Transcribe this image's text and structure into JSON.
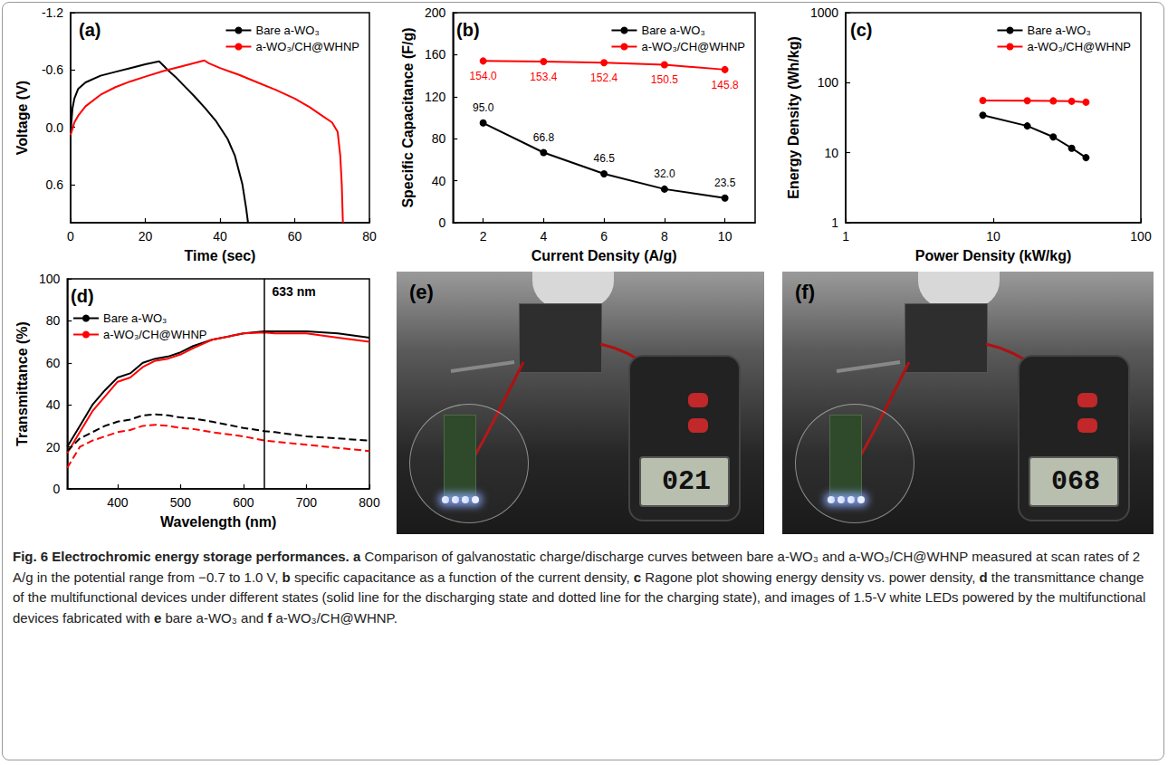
{
  "chart_data": [
    {
      "type": "line",
      "title": "(a)",
      "xlabel": "Time (sec)",
      "ylabel": "Voltage (V)",
      "xlim": [
        0,
        80
      ],
      "xticks": [
        0,
        20,
        40,
        60,
        80
      ],
      "ylim": [
        1.0,
        -1.2
      ],
      "yticks": [
        -1.2,
        -0.6,
        {
          "value": 0,
          "label": "0.0"
        },
        0.6
      ],
      "grid": false,
      "legend": "upper right",
      "series": [
        {
          "name": "Bare a-WO₃",
          "color": "#000000",
          "line_style": "solid",
          "x": [
            0,
            0.5,
            1,
            2,
            4,
            8,
            12,
            16,
            20,
            23.7,
            24.5,
            26,
            28,
            30,
            33,
            36,
            39,
            42,
            44,
            46,
            47,
            47.5
          ],
          "values": [
            0.05,
            -0.2,
            -0.3,
            -0.4,
            -0.47,
            -0.54,
            -0.58,
            -0.62,
            -0.66,
            -0.69,
            -0.66,
            -0.6,
            -0.53,
            -0.45,
            -0.33,
            -0.2,
            -0.06,
            0.12,
            0.3,
            0.6,
            0.85,
            1.0
          ]
        },
        {
          "name": "a-WO₃/CH@WHNP",
          "color": "#ff0000",
          "line_style": "solid",
          "x": [
            0,
            1,
            2,
            4,
            8,
            12,
            16,
            20,
            25,
            30,
            35.8,
            37,
            40,
            45,
            50,
            55,
            60,
            64,
            67,
            70,
            71.5,
            72.2,
            72.6,
            72.9
          ],
          "values": [
            0.08,
            -0.05,
            -0.12,
            -0.22,
            -0.34,
            -0.42,
            -0.48,
            -0.53,
            -0.59,
            -0.64,
            -0.7,
            -0.67,
            -0.62,
            -0.55,
            -0.47,
            -0.39,
            -0.3,
            -0.21,
            -0.13,
            -0.05,
            0.05,
            0.3,
            0.6,
            1.0
          ]
        }
      ]
    },
    {
      "type": "line",
      "title": "(b)",
      "xlabel": "Current Density (A/g)",
      "ylabel": "Specific Capacitance (F/g)",
      "x": [
        2,
        4,
        6,
        8,
        10
      ],
      "xlim": [
        1,
        11
      ],
      "xticks": [
        2,
        4,
        6,
        8,
        10
      ],
      "ylim": [
        0,
        200
      ],
      "yticks": [
        0,
        40,
        80,
        120,
        160,
        200
      ],
      "grid": false,
      "legend": "upper right",
      "data_labels": true,
      "marker": "circle",
      "series": [
        {
          "name": "Bare a-WO₃",
          "color": "#000000",
          "line_style": "solid",
          "values": [
            95.0,
            66.8,
            46.5,
            32.0,
            23.5
          ],
          "value_labels": [
            "95.0",
            "66.8",
            "46.5",
            "32.0",
            "23.5"
          ]
        },
        {
          "name": "a-WO₃/CH@WHNP",
          "color": "#ff0000",
          "line_style": "solid",
          "values": [
            154.0,
            153.4,
            152.4,
            150.5,
            145.8
          ],
          "value_labels": [
            "154.0",
            "153.4",
            "152.4",
            "150.5",
            "145.8"
          ]
        }
      ]
    },
    {
      "type": "line",
      "title": "(c)",
      "xlabel": "Power Density (kW/kg)",
      "ylabel": "Energy Density (Wh/kg)",
      "log": true,
      "xlim": [
        1,
        100
      ],
      "xticks": [
        1,
        10,
        100
      ],
      "ylim": [
        1,
        1000
      ],
      "yticks": [
        1,
        10,
        100,
        1000
      ],
      "grid": false,
      "legend": "upper right",
      "marker": "circle",
      "series": [
        {
          "name": "Bare a-WO₃",
          "color": "#000000",
          "line_style": "solid",
          "x": [
            8.5,
            17,
            25.5,
            34,
            42.5
          ],
          "values": [
            34.3,
            24.1,
            16.8,
            11.6,
            8.5
          ]
        },
        {
          "name": "a-WO₃/CH@WHNP",
          "color": "#ff0000",
          "line_style": "solid",
          "x": [
            8.5,
            17,
            25.5,
            34,
            42.5
          ],
          "values": [
            55.6,
            55.4,
            55.0,
            54.3,
            52.6
          ]
        }
      ]
    },
    {
      "type": "line",
      "title": "(d)",
      "xlabel": "Wavelength (nm)",
      "ylabel": "Transmittance (%)",
      "x": [
        320,
        340,
        360,
        380,
        400,
        420,
        440,
        460,
        480,
        500,
        520,
        550,
        600,
        633,
        650,
        700,
        750,
        800
      ],
      "xlim": [
        320,
        800
      ],
      "xticks": [
        400,
        500,
        600,
        700,
        800
      ],
      "ylim": [
        0,
        100
      ],
      "yticks": [
        0,
        20,
        40,
        60,
        80,
        100
      ],
      "grid": false,
      "legend": "upper left",
      "annotations": [
        {
          "x": 633,
          "label": "633 nm"
        }
      ],
      "series": [
        {
          "name": "Bare a-WO₃",
          "color": "#000000",
          "line_style": "solid",
          "values": [
            20,
            30,
            40,
            47,
            53,
            55,
            60,
            62,
            63,
            65,
            68,
            71,
            74,
            75,
            75,
            75,
            74,
            72
          ]
        },
        {
          "name": "a-WO₃/CH@WHNP",
          "color": "#ff0000",
          "line_style": "solid",
          "values": [
            17,
            27,
            37,
            44,
            51,
            53,
            58,
            61,
            62,
            64,
            67,
            71,
            74,
            74.5,
            74,
            74,
            72,
            70
          ]
        },
        {
          "name": "Bare a-WO₃",
          "color": "#000000",
          "line_style": "dashed",
          "values": [
            18,
            24,
            27,
            30,
            32,
            33,
            35,
            35.5,
            35,
            34,
            33.5,
            32,
            29,
            27.5,
            27,
            25,
            24,
            23
          ]
        },
        {
          "name": "a-WO₃/CH@WHNP",
          "color": "#ff0000",
          "line_style": "dashed",
          "values": [
            10,
            20,
            23,
            25,
            27,
            28,
            30,
            30.5,
            30,
            29,
            28.5,
            27,
            25,
            23,
            22.5,
            21,
            19.5,
            18
          ]
        }
      ]
    }
  ],
  "photos": [
    {
      "title": "(e)",
      "meter": "021"
    },
    {
      "title": "(f)",
      "meter": "068"
    }
  ],
  "caption": {
    "heading": "Fig. 6 Electrochromic energy storage performances.",
    "items": [
      {
        "letter": "a",
        "text": "Comparison of galvanostatic charge/discharge curves between bare a-WO₃ and a-WO₃/CH@WHNP measured at scan rates of 2 A/g in the potential range from −0.7 to 1.0 V,"
      },
      {
        "letter": "b",
        "text": "specific capacitance as a function of the current density,"
      },
      {
        "letter": "c",
        "text": "Ragone plot showing energy density vs. power density,"
      },
      {
        "letter": "d",
        "text": "the transmittance change of the multifunctional devices under different states (solid line for the discharging state and dotted line for the charging state), and images of 1.5-V white LEDs powered by the multifunctional devices fabricated with"
      },
      {
        "letter": "e",
        "text": "bare a-WO₃ and"
      },
      {
        "letter": "f",
        "text": "a-WO₃/CH@WHNP."
      }
    ]
  }
}
